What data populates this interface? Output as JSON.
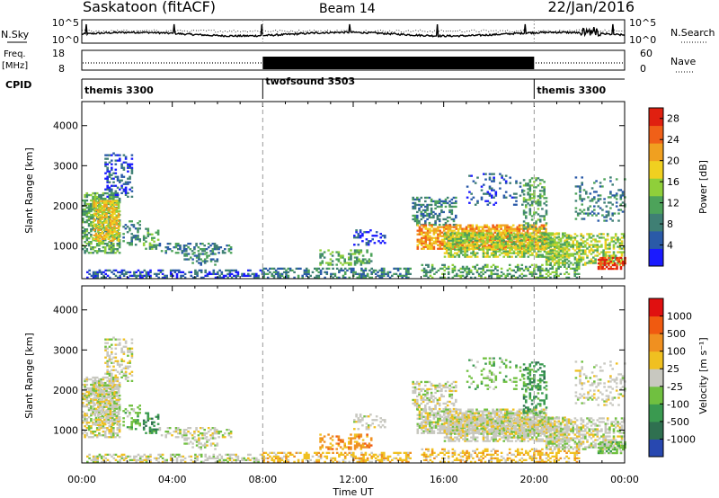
{
  "header": {
    "station": "Saskatoon (fitACF)",
    "beam": "Beam 14",
    "date": "22/Jan/2016"
  },
  "top_panels": {
    "nsky_label": "N.Sky",
    "nsky_ticks": [
      "10^5",
      "10^0"
    ],
    "nsearch_label": "N.Search",
    "nsearch_ticks": [
      "10^5",
      "10^0"
    ],
    "freq_label": "Freq.",
    "freq_unit": "[MHz]",
    "freq_ticks": [
      "18",
      "8"
    ],
    "nave_label": "Nave",
    "nave_ticks": [
      "60",
      "0"
    ],
    "cpid_label": "CPID",
    "cpid_segments": [
      {
        "name": "themis 3300",
        "start": 0,
        "end": 8
      },
      {
        "name": "twofsound 3503",
        "start": 8,
        "end": 20
      },
      {
        "name": "themis 3300",
        "start": 20,
        "end": 24
      }
    ]
  },
  "chart_data": [
    {
      "type": "heatmap",
      "name": "Power",
      "ylabel": "Slant Range [km]",
      "xlabel": "",
      "xlim": [
        0,
        24
      ],
      "ylim": [
        180,
        4600
      ],
      "yticks": [
        "1000",
        "2000",
        "3000",
        "4000"
      ],
      "colorbar_label": "Power [dB]",
      "colorbar_ticks": [
        "4",
        "8",
        "12",
        "16",
        "20",
        "24",
        "28"
      ],
      "colorbar_range": [
        0,
        30
      ],
      "colorbar_colors": [
        "#1a1aff",
        "#2a5aa8",
        "#3f7f74",
        "#4da35a",
        "#8fcf3a",
        "#f0d020",
        "#f0a020",
        "#f06018",
        "#e02010"
      ]
    },
    {
      "type": "heatmap",
      "name": "Velocity",
      "ylabel": "Slant Range [km]",
      "xlabel": "Time UT",
      "xlim": [
        0,
        24
      ],
      "ylim": [
        180,
        4600
      ],
      "yticks": [
        "1000",
        "2000",
        "3000",
        "4000"
      ],
      "xticks": [
        "00:00",
        "04:00",
        "08:00",
        "12:00",
        "16:00",
        "20:00",
        "00:00"
      ],
      "colorbar_label": "Velocity [m s⁻¹]",
      "colorbar_ticks": [
        "1000",
        "500",
        "100",
        "25",
        "-25",
        "-100",
        "-500",
        "-1000"
      ],
      "colorbar_colors": [
        "#2848b0",
        "#2f7050",
        "#3a9a50",
        "#70c040",
        "#c8c8c0",
        "#f0c020",
        "#f09020",
        "#f05a10",
        "#e01010"
      ]
    }
  ]
}
